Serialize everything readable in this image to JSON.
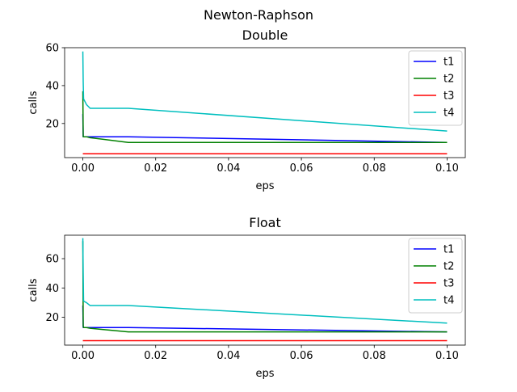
{
  "suptitle": "Newton-Raphson",
  "chart_data": [
    {
      "type": "line",
      "title": "Double",
      "xlabel": "eps",
      "ylabel": "calls",
      "xlim": [
        -0.005,
        0.105
      ],
      "ylim": [
        2,
        60
      ],
      "xticks": [
        0.0,
        0.02,
        0.04,
        0.06,
        0.08,
        0.1
      ],
      "xtick_labels": [
        "0.00",
        "0.02",
        "0.04",
        "0.06",
        "0.08",
        "0.10"
      ],
      "yticks": [
        20,
        40,
        60
      ],
      "ytick_labels": [
        "20",
        "40",
        "60"
      ],
      "grid": false,
      "legend_position": "top-right",
      "series": [
        {
          "name": "t1",
          "color": "#0000ff",
          "x": [
            0,
            0.0001,
            0.0002,
            0.001,
            0.002,
            0.0125,
            0.1
          ],
          "y": [
            25,
            13,
            13,
            13,
            13,
            13,
            10
          ]
        },
        {
          "name": "t2",
          "color": "#008000",
          "x": [
            0,
            0.0001,
            0.0002,
            0.001,
            0.002,
            0.0125,
            0.1
          ],
          "y": [
            37,
            13,
            13,
            13,
            12.5,
            10,
            10
          ]
        },
        {
          "name": "t3",
          "color": "#ff0000",
          "x": [
            0,
            0.0001,
            0.0002,
            0.001,
            0.002,
            0.0125,
            0.1
          ],
          "y": [
            4,
            4,
            4,
            4,
            4,
            4,
            4
          ]
        },
        {
          "name": "t4",
          "color": "#00bfbf",
          "x": [
            0,
            0.0001,
            0.0002,
            0.001,
            0.002,
            0.0125,
            0.1
          ],
          "y": [
            58,
            42,
            33,
            30,
            28,
            28,
            16
          ]
        }
      ]
    },
    {
      "type": "line",
      "title": "Float",
      "xlabel": "eps",
      "ylabel": "calls",
      "xlim": [
        -0.005,
        0.105
      ],
      "ylim": [
        1,
        76
      ],
      "xticks": [
        0.0,
        0.02,
        0.04,
        0.06,
        0.08,
        0.1
      ],
      "xtick_labels": [
        "0.00",
        "0.02",
        "0.04",
        "0.06",
        "0.08",
        "0.10"
      ],
      "yticks": [
        20,
        40,
        60
      ],
      "ytick_labels": [
        "20",
        "40",
        "60"
      ],
      "grid": false,
      "legend_position": "top-right",
      "series": [
        {
          "name": "t1",
          "color": "#0000ff",
          "x": [
            0,
            0.0001,
            0.0002,
            0.001,
            0.002,
            0.0125,
            0.1
          ],
          "y": [
            28,
            13,
            13,
            13,
            13,
            13,
            10
          ]
        },
        {
          "name": "t2",
          "color": "#008000",
          "x": [
            0,
            0.0001,
            0.0002,
            0.001,
            0.002,
            0.0125,
            0.1
          ],
          "y": [
            72,
            14,
            13,
            13,
            12.5,
            10,
            10
          ]
        },
        {
          "name": "t3",
          "color": "#ff0000",
          "x": [
            0,
            0.0001,
            0.0002,
            0.001,
            0.002,
            0.0125,
            0.1
          ],
          "y": [
            4,
            4,
            4,
            4,
            4,
            4,
            4
          ]
        },
        {
          "name": "t4",
          "color": "#00bfbf",
          "x": [
            0,
            0.0001,
            0.0002,
            0.001,
            0.002,
            0.0125,
            0.1
          ],
          "y": [
            74,
            50,
            31,
            30,
            28,
            28,
            16
          ]
        }
      ]
    }
  ]
}
